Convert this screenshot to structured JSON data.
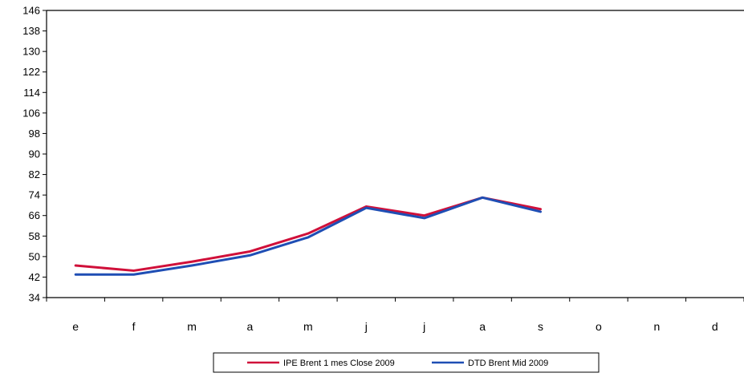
{
  "chart_data": {
    "type": "line",
    "categories": [
      "e",
      "f",
      "m",
      "a",
      "m",
      "j",
      "j",
      "a",
      "s",
      "o",
      "n",
      "d"
    ],
    "series": [
      {
        "name": "IPE Brent 1 mes Close 2009",
        "color": "#d0103a",
        "values": [
          46.5,
          44.5,
          48,
          52,
          59,
          69.5,
          66,
          73,
          68.5,
          null,
          null,
          null
        ]
      },
      {
        "name": "DTD Brent Mid 2009",
        "color": "#1f4eb4",
        "values": [
          43,
          43,
          46.5,
          50.5,
          57.5,
          69,
          65,
          73,
          67.5,
          null,
          null,
          null
        ]
      }
    ],
    "y_ticks": [
      34,
      42,
      50,
      58,
      66,
      74,
      82,
      90,
      98,
      106,
      114,
      122,
      130,
      138,
      146
    ],
    "ylim": [
      34,
      146
    ],
    "grid": false,
    "legend_position": "bottom-center"
  }
}
